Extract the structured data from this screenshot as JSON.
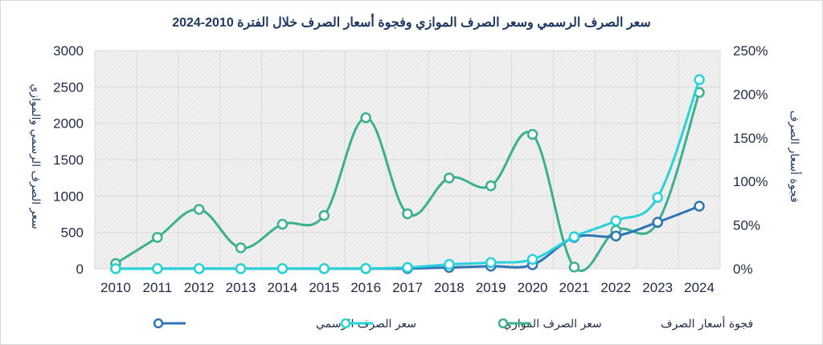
{
  "chart_data": {
    "type": "line",
    "title": "سعر الصرف الرسمي وسعر الصرف الموازي وفجوة أسعار الصرف خلال الفترة 2010-2024",
    "ylabel_left": "سعر الصرف الرسمي والموازي",
    "ylabel_right": "فجوة أسعار الصرف",
    "x": [
      "2010",
      "2011",
      "2012",
      "2013",
      "2014",
      "2015",
      "2016",
      "2017",
      "2018",
      "2019",
      "2020",
      "2021",
      "2022",
      "2023",
      "2024"
    ],
    "y_left_ticks": [
      "0",
      "500",
      "1000",
      "1500",
      "2000",
      "2500",
      "3000"
    ],
    "y_right_ticks": [
      "0%",
      "50%",
      "100%",
      "150%",
      "200%",
      "250%"
    ],
    "ylim_left": [
      0,
      3000
    ],
    "ylim_right": [
      0,
      2.5
    ],
    "grid": true,
    "legend_position": "bottom",
    "series": [
      {
        "name": "سعر الصرف الرسمي",
        "axis": "left",
        "color": "#2e75b6",
        "values": [
          1.5,
          1.5,
          1.5,
          1.5,
          1.5,
          1.5,
          1.5,
          3,
          18,
          36,
          55,
          430,
          450,
          640,
          860
        ]
      },
      {
        "name": "سعر الصرف الموازي",
        "axis": "left",
        "color": "#27d3d9",
        "values": [
          1.6,
          2.1,
          2.5,
          2.0,
          2.3,
          2.5,
          4.0,
          18,
          60,
          85,
          130,
          440,
          660,
          980,
          2600
        ]
      },
      {
        "name": "فجوة أسعار الصرف",
        "axis": "right",
        "color": "#3bb08f",
        "values": [
          0.06,
          0.36,
          0.68,
          0.24,
          0.51,
          0.61,
          1.73,
          0.63,
          1.04,
          0.95,
          1.54,
          0.02,
          0.44,
          0.53,
          2.02
        ]
      }
    ]
  }
}
